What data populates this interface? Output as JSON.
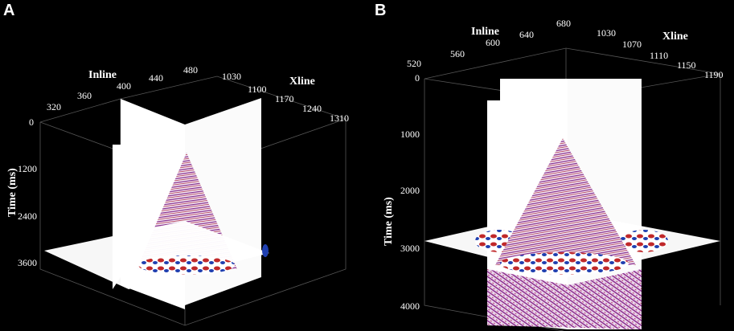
{
  "panels": [
    {
      "letter": "A",
      "inline_title": "Inline",
      "xline_title": "Xline",
      "time_title": "Time (ms)",
      "inline_ticks": [
        "320",
        "360",
        "400",
        "440",
        "480"
      ],
      "xline_ticks": [
        "1030",
        "1100",
        "1170",
        "1240",
        "1310"
      ],
      "time_ticks": [
        "0",
        "1200",
        "2400",
        "3600"
      ]
    },
    {
      "letter": "B",
      "inline_title": "Inline",
      "xline_title": "Xline",
      "time_title": "Time (ms)",
      "inline_ticks": [
        "520",
        "560",
        "600",
        "640",
        "680"
      ],
      "xline_ticks": [
        "1030",
        "1070",
        "1110",
        "1150",
        "1190"
      ],
      "time_ticks": [
        "0",
        "1000",
        "2000",
        "3000",
        "4000"
      ]
    }
  ],
  "colors": {
    "background": "#000000",
    "positive": "#c0282a",
    "negative": "#1f3fb0",
    "mid": "#7a2f8f",
    "slice": "#ffffff"
  }
}
